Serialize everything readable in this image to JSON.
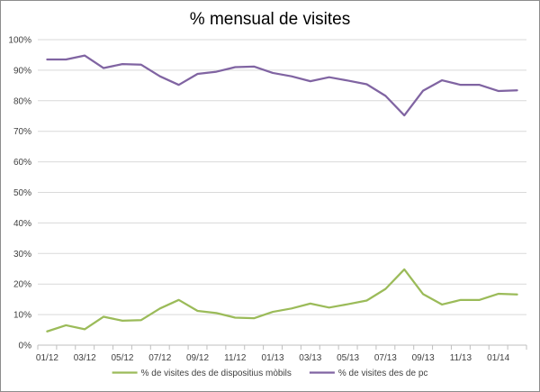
{
  "chart_data": {
    "type": "line",
    "title": "% mensual de visites",
    "xlabel": "",
    "ylabel": "",
    "ylim": [
      0,
      100
    ],
    "y_ticks": [
      "0%",
      "10%",
      "20%",
      "30%",
      "40%",
      "50%",
      "60%",
      "70%",
      "80%",
      "90%",
      "100%"
    ],
    "y_tick_values": [
      0,
      10,
      20,
      30,
      40,
      50,
      60,
      70,
      80,
      90,
      100
    ],
    "categories": [
      "01/12",
      "02/12",
      "03/12",
      "04/12",
      "05/12",
      "06/12",
      "07/12",
      "08/12",
      "09/12",
      "10/12",
      "11/12",
      "12/12",
      "01/13",
      "02/13",
      "03/13",
      "04/13",
      "05/13",
      "06/13",
      "07/13",
      "08/13",
      "09/13",
      "10/13",
      "11/13",
      "12/13",
      "01/14",
      "02/14"
    ],
    "x_tick_labels": [
      "01/12",
      "03/12",
      "05/12",
      "07/12",
      "09/12",
      "11/12",
      "01/13",
      "03/13",
      "05/13",
      "07/13",
      "09/13",
      "11/13",
      "01/14"
    ],
    "grid": true,
    "legend_position": "bottom",
    "series": [
      {
        "name": "% de visites des de dispositius mòbils",
        "color": "#9BBB59",
        "values": [
          4.5,
          6.5,
          5.2,
          9.3,
          8.0,
          8.2,
          12.0,
          14.8,
          11.2,
          10.5,
          9.0,
          8.8,
          10.9,
          12.0,
          13.6,
          12.3,
          13.4,
          14.6,
          18.4,
          24.8,
          16.7,
          13.3,
          14.8,
          14.8,
          16.8,
          16.6
        ]
      },
      {
        "name": "% de visites des de pc",
        "color": "#8064A2",
        "values": [
          93.5,
          93.5,
          94.8,
          90.7,
          92.0,
          91.8,
          88.0,
          85.2,
          88.8,
          89.5,
          91.0,
          91.2,
          89.1,
          88.0,
          86.4,
          87.7,
          86.6,
          85.4,
          81.6,
          75.2,
          83.3,
          86.7,
          85.2,
          85.2,
          83.2,
          83.4
        ]
      }
    ]
  }
}
